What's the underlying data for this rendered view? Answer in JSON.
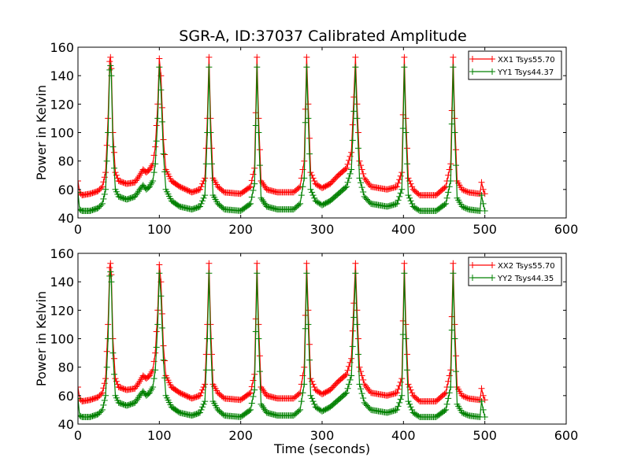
{
  "chart_data": {
    "title": "SGR-A, ID:37037 Calibrated Amplitude",
    "x_ticks": [
      "0",
      "100",
      "200",
      "300",
      "400",
      "500",
      "600"
    ],
    "y_ticks": [
      "40",
      "60",
      "80",
      "100",
      "120",
      "140",
      "160"
    ],
    "panels": [
      {
        "type": "line",
        "ylabel": "Power in Kelvin",
        "xlabel": "",
        "xlim": [
          0,
          600
        ],
        "ylim": [
          40,
          160
        ],
        "legend_position": "top-right",
        "series": [
          {
            "name": "XX1 Tsys55.70",
            "color": "#ff0000",
            "x": [
              0,
              2,
              5,
              15,
              25,
              30,
              34,
              37,
              39,
              40,
              41,
              43,
              46,
              50,
              60,
              70,
              76,
              80,
              84,
              88,
              92,
              95,
              98,
              100,
              102,
              105,
              108,
              115,
              125,
              140,
              150,
              156,
              159,
              161,
              163,
              166,
              172,
              180,
              200,
              212,
              217,
              220,
              222,
              225,
              232,
              245,
              265,
              273,
              278,
              281,
              283,
              286,
              292,
              300,
              310,
              320,
              330,
              336,
              339,
              341,
              343,
              346,
              352,
              360,
              380,
              392,
              398,
              401,
              403,
              406,
              412,
              420,
              440,
              452,
              458,
              461,
              463,
              466,
              472,
              480,
              494,
              496,
              498,
              500
            ],
            "y": [
              66,
              58,
              56,
              57,
              59,
              62,
              72,
              110,
              150,
              153,
              145,
              100,
              72,
              66,
              64,
              65,
              70,
              74,
              72,
              74,
              78,
              90,
              120,
              152,
              140,
              95,
              74,
              66,
              62,
              58,
              60,
              68,
              110,
              153,
              110,
              68,
              62,
              58,
              57,
              62,
              75,
              153,
              110,
              66,
              60,
              58,
              58,
              62,
              80,
              153,
              120,
              72,
              64,
              61,
              64,
              70,
              75,
              86,
              125,
              153,
              120,
              80,
              68,
              62,
              60,
              62,
              72,
              153,
              110,
              68,
              60,
              56,
              56,
              62,
              78,
              153,
              110,
              66,
              60,
              58,
              57,
              65,
              60,
              57
            ]
          },
          {
            "name": "YY1 Tsys44.37",
            "color": "#008000",
            "x": [
              0,
              2,
              5,
              15,
              25,
              30,
              34,
              37,
              39,
              40,
              41,
              43,
              46,
              50,
              60,
              70,
              76,
              80,
              84,
              88,
              92,
              95,
              98,
              100,
              102,
              105,
              108,
              115,
              125,
              140,
              150,
              156,
              159,
              161,
              163,
              166,
              172,
              180,
              200,
              212,
              217,
              220,
              222,
              225,
              232,
              245,
              265,
              273,
              278,
              281,
              283,
              286,
              292,
              300,
              310,
              320,
              330,
              336,
              339,
              341,
              343,
              346,
              352,
              360,
              380,
              392,
              398,
              401,
              403,
              406,
              412,
              420,
              440,
              452,
              458,
              461,
              463,
              466,
              472,
              480,
              494,
              496,
              498,
              500
            ],
            "y": [
              58,
              46,
              45,
              45,
              47,
              50,
              60,
              100,
              144,
              147,
              140,
              90,
              60,
              55,
              53,
              55,
              60,
              63,
              60,
              62,
              66,
              78,
              110,
              146,
              130,
              85,
              60,
              52,
              48,
              46,
              48,
              56,
              100,
              146,
              100,
              56,
              50,
              46,
              45,
              50,
              64,
              146,
              100,
              54,
              48,
              46,
              46,
              50,
              68,
              146,
              110,
              60,
              52,
              49,
              52,
              57,
              62,
              74,
              115,
              146,
              110,
              68,
              55,
              50,
              48,
              50,
              60,
              146,
              100,
              56,
              48,
              45,
              45,
              50,
              66,
              146,
              100,
              54,
              48,
              46,
              45,
              56,
              50,
              45
            ]
          }
        ]
      },
      {
        "type": "line",
        "ylabel": "Power in Kelvin",
        "xlabel": "Time (seconds)",
        "xlim": [
          0,
          600
        ],
        "ylim": [
          40,
          160
        ],
        "legend_position": "top-right",
        "series": [
          {
            "name": "XX2 Tsys55.70",
            "color": "#ff0000",
            "x": [
              0,
              2,
              5,
              15,
              25,
              30,
              34,
              37,
              39,
              40,
              41,
              43,
              46,
              50,
              60,
              70,
              76,
              80,
              84,
              88,
              92,
              95,
              98,
              100,
              102,
              105,
              108,
              115,
              125,
              140,
              150,
              156,
              159,
              161,
              163,
              166,
              172,
              180,
              200,
              212,
              217,
              220,
              222,
              225,
              232,
              245,
              265,
              273,
              278,
              281,
              283,
              286,
              292,
              300,
              310,
              320,
              330,
              336,
              339,
              341,
              343,
              346,
              352,
              360,
              380,
              392,
              398,
              401,
              403,
              406,
              412,
              420,
              440,
              452,
              458,
              461,
              463,
              466,
              472,
              480,
              494,
              496,
              498,
              500
            ],
            "y": [
              66,
              58,
              56,
              57,
              59,
              62,
              72,
              110,
              150,
              153,
              145,
              100,
              72,
              66,
              64,
              65,
              70,
              74,
              72,
              74,
              78,
              90,
              120,
              152,
              140,
              95,
              74,
              66,
              62,
              58,
              60,
              68,
              110,
              153,
              110,
              68,
              62,
              58,
              57,
              62,
              75,
              153,
              110,
              66,
              60,
              58,
              58,
              62,
              80,
              153,
              120,
              72,
              64,
              61,
              64,
              70,
              75,
              86,
              125,
              153,
              120,
              80,
              68,
              62,
              60,
              62,
              72,
              153,
              110,
              68,
              60,
              56,
              56,
              62,
              78,
              153,
              110,
              66,
              60,
              58,
              57,
              65,
              60,
              57
            ]
          },
          {
            "name": "YY2 Tsys44.35",
            "color": "#008000",
            "x": [
              0,
              2,
              5,
              15,
              25,
              30,
              34,
              37,
              39,
              40,
              41,
              43,
              46,
              50,
              60,
              70,
              76,
              80,
              84,
              88,
              92,
              95,
              98,
              100,
              102,
              105,
              108,
              115,
              125,
              140,
              150,
              156,
              159,
              161,
              163,
              166,
              172,
              180,
              200,
              212,
              217,
              220,
              222,
              225,
              232,
              245,
              265,
              273,
              278,
              281,
              283,
              286,
              292,
              300,
              310,
              320,
              330,
              336,
              339,
              341,
              343,
              346,
              352,
              360,
              380,
              392,
              398,
              401,
              403,
              406,
              412,
              420,
              440,
              452,
              458,
              461,
              463,
              466,
              472,
              480,
              494,
              496,
              498,
              500
            ],
            "y": [
              58,
              46,
              45,
              45,
              47,
              50,
              60,
              100,
              144,
              147,
              140,
              90,
              60,
              55,
              53,
              55,
              60,
              63,
              60,
              62,
              66,
              78,
              110,
              146,
              130,
              85,
              60,
              52,
              48,
              46,
              48,
              56,
              100,
              146,
              100,
              56,
              50,
              46,
              45,
              50,
              64,
              146,
              100,
              54,
              48,
              46,
              46,
              50,
              68,
              146,
              110,
              60,
              52,
              49,
              52,
              57,
              62,
              74,
              115,
              146,
              110,
              68,
              55,
              50,
              48,
              50,
              60,
              146,
              100,
              56,
              48,
              45,
              45,
              50,
              66,
              146,
              100,
              54,
              48,
              46,
              45,
              56,
              50,
              45
            ]
          }
        ]
      }
    ]
  }
}
